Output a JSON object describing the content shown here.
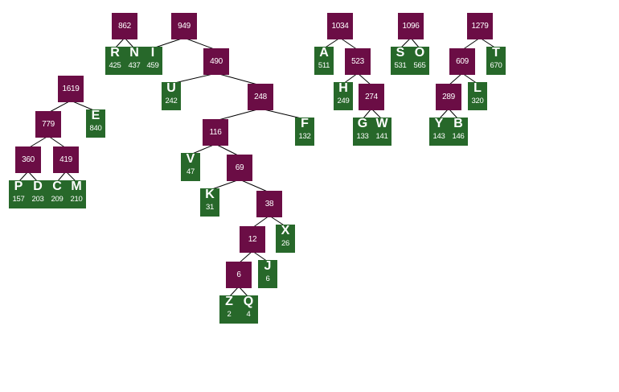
{
  "colors": {
    "internal": "#6b0d45",
    "leaf": "#27682a",
    "edge": "#000000",
    "text": "#ffffff"
  },
  "internal": {
    "n862": "862",
    "n949": "949",
    "n490": "490",
    "n248": "248",
    "n116": "116",
    "n69": "69",
    "n38": "38",
    "n12": "12",
    "n6": "6",
    "n1619": "1619",
    "n779": "779",
    "n360": "360",
    "n419": "419",
    "n1034": "1034",
    "n523": "523",
    "n274": "274",
    "n1096": "1096",
    "n1279": "1279",
    "n609": "609",
    "n289": "289"
  },
  "leaves": {
    "R": {
      "symbol": "R",
      "weight": "425"
    },
    "N": {
      "symbol": "N",
      "weight": "437"
    },
    "I": {
      "symbol": "I",
      "weight": "459"
    },
    "U": {
      "symbol": "U",
      "weight": "242"
    },
    "F": {
      "symbol": "F",
      "weight": "132"
    },
    "V": {
      "symbol": "V",
      "weight": "47"
    },
    "K": {
      "symbol": "K",
      "weight": "31"
    },
    "X": {
      "symbol": "X",
      "weight": "26"
    },
    "J": {
      "symbol": "J",
      "weight": "6"
    },
    "Z": {
      "symbol": "Z",
      "weight": "2"
    },
    "Q": {
      "symbol": "Q",
      "weight": "4"
    },
    "E": {
      "symbol": "E",
      "weight": "840"
    },
    "P": {
      "symbol": "P",
      "weight": "157"
    },
    "D": {
      "symbol": "D",
      "weight": "203"
    },
    "C": {
      "symbol": "C",
      "weight": "209"
    },
    "M": {
      "symbol": "M",
      "weight": "210"
    },
    "A": {
      "symbol": "A",
      "weight": "511"
    },
    "H": {
      "symbol": "H",
      "weight": "249"
    },
    "G": {
      "symbol": "G",
      "weight": "133"
    },
    "W": {
      "symbol": "W",
      "weight": "141"
    },
    "S": {
      "symbol": "S",
      "weight": "531"
    },
    "O": {
      "symbol": "O",
      "weight": "565"
    },
    "T": {
      "symbol": "T",
      "weight": "670"
    },
    "L": {
      "symbol": "L",
      "weight": "320"
    },
    "Y": {
      "symbol": "Y",
      "weight": "143"
    },
    "B": {
      "symbol": "B",
      "weight": "146"
    }
  }
}
